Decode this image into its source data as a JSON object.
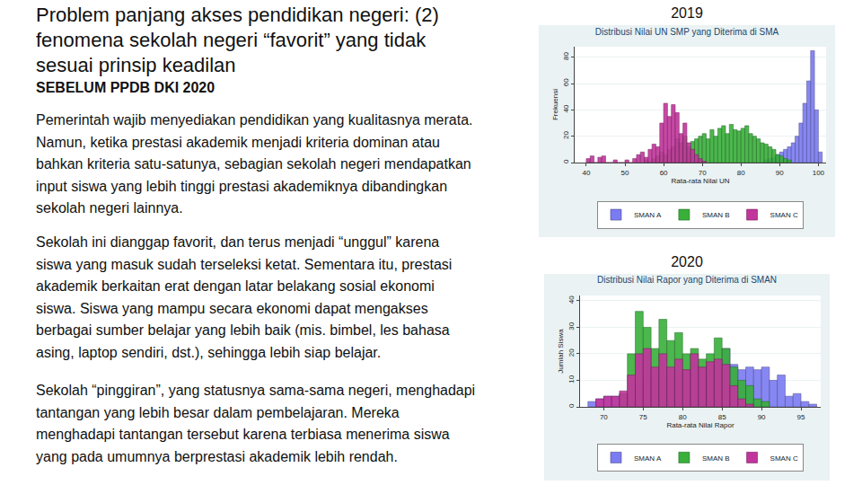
{
  "slide": {
    "title": [
      "Problem panjang akses pendidikan negeri: (2)",
      "fenomena sekolah negeri “favorit” yang tidak",
      "sesuai prinsip keadilan"
    ],
    "subtitle": "SEBELUM PPDB DKI 2020",
    "paragraphs": [
      [
        "Pemerintah wajib menyediakan pendidikan yang kualitasnya merata.",
        "Namun, ketika prestasi akademik menjadi kriteria dominan atau",
        "bahkan kriteria satu-satunya, sebagian sekolah negeri mendapatkan",
        "input siswa yang lebih tinggi prestasi akademiknya dibandingkan",
        "sekolah negeri lainnya."
      ],
      [
        "Sekolah ini dianggap favorit, dan terus menjadi “unggul” karena",
        "siswa yang masuk sudah terseleksi ketat. Sementara itu, prestasi",
        "akademik berkaitan erat dengan latar belakang sosial ekonomi",
        "siswa. Siswa yang mampu secara ekonomi dapat mengakses",
        "berbagai sumber belajar yang lebih baik (mis. bimbel, les bahasa",
        "asing, laptop sendiri, dst.), sehingga lebih siap belajar."
      ],
      [
        "Sekolah “pinggiran”, yang statusnya sama-sama negeri, menghadapi",
        "tantangan yang lebih besar dalam pembelajaran. Mereka",
        "menghadapi tantangan tersebut karena terbiasa menerima siswa",
        "yang pada umumnya berprestasi akademik lebih rendah."
      ]
    ]
  },
  "chart_data": [
    {
      "type": "histogram",
      "heading": "2019",
      "title": "Distribusi Nilai UN SMP yang Diterima di SMA",
      "x_label": "Rata-rata Nilai UN",
      "y_label": "Frekuensi",
      "xlim": [
        37,
        102
      ],
      "xticks": [
        40,
        50,
        60,
        70,
        80,
        90,
        100
      ],
      "ylim": [
        0,
        88
      ],
      "yticks": [
        0,
        20,
        40,
        60,
        80
      ],
      "grid": true,
      "legend": "bottom",
      "series": [
        {
          "name": "SMAN A",
          "color": "#7b7bf2",
          "bins": [
            86,
            87,
            88,
            89,
            90,
            91,
            92,
            93,
            94,
            95,
            96,
            97,
            98,
            99,
            100,
            101
          ],
          "values": [
            2,
            3,
            4,
            6,
            8,
            10,
            12,
            15,
            20,
            30,
            45,
            62,
            85,
            40,
            8
          ]
        },
        {
          "name": "SMAN B",
          "color": "#38b03a",
          "bins": [
            55,
            56,
            57,
            58,
            59,
            60,
            61,
            62,
            63,
            64,
            65,
            66,
            67,
            68,
            69,
            70,
            71,
            72,
            73,
            74,
            75,
            76,
            77,
            78,
            79,
            80,
            81,
            82,
            83,
            84,
            85,
            86,
            87,
            88,
            89,
            90,
            91,
            92,
            93
          ],
          "values": [
            2,
            0,
            3,
            5,
            8,
            6,
            10,
            12,
            18,
            15,
            20,
            12,
            16,
            18,
            20,
            22,
            18,
            25,
            20,
            26,
            28,
            22,
            29,
            25,
            24,
            26,
            28,
            22,
            20,
            18,
            15,
            14,
            12,
            10,
            6,
            5,
            3,
            2
          ]
        },
        {
          "name": "SMAN C",
          "color": "#c2359c",
          "bins": [
            40,
            41,
            42,
            43,
            44,
            45,
            46,
            47,
            48,
            49,
            50,
            51,
            52,
            53,
            54,
            55,
            56,
            57,
            58,
            59,
            60,
            61,
            62,
            63,
            64,
            65,
            66,
            67,
            68,
            69,
            70,
            71
          ],
          "values": [
            3,
            5,
            0,
            4,
            5,
            0,
            0,
            2,
            0,
            0,
            2,
            0,
            3,
            6,
            8,
            4,
            10,
            14,
            12,
            30,
            45,
            35,
            44,
            38,
            22,
            30,
            15,
            10,
            6,
            3,
            1
          ]
        }
      ]
    },
    {
      "type": "histogram",
      "heading": "2020",
      "title": "Distribusi Nilai Rapor yang Diterima di SMAN",
      "x_label": "Rata-rata Nilai Rapor",
      "y_label": "Jumlah Siswa",
      "xlim": [
        67,
        97.5
      ],
      "xticks": [
        70,
        75,
        80,
        85,
        90,
        95
      ],
      "ylim": [
        0,
        42
      ],
      "yticks": [
        0,
        10,
        20,
        30,
        40
      ],
      "grid": true,
      "legend": "bottom",
      "series": [
        {
          "name": "SMAN A",
          "color": "#7b7bf2",
          "bins": [
            68,
            69,
            70,
            71,
            72,
            73,
            74,
            75,
            76,
            77,
            78,
            79,
            80,
            81,
            82,
            83,
            84,
            85,
            86,
            87,
            88,
            89,
            90,
            91,
            92,
            93,
            94,
            95,
            96,
            97
          ],
          "values": [
            2,
            3,
            4,
            4,
            5,
            5,
            8,
            10,
            12,
            12,
            14,
            12,
            14,
            16,
            15,
            16,
            17,
            22,
            16,
            14,
            15,
            14,
            15,
            10,
            12,
            4,
            5,
            2,
            1
          ]
        },
        {
          "name": "SMAN B",
          "color": "#38b03a",
          "bins": [
            72,
            73,
            74,
            75,
            76,
            77,
            78,
            79,
            80,
            81,
            82,
            83,
            84,
            85,
            86,
            87,
            88,
            89,
            90,
            91
          ],
          "values": [
            5,
            20,
            36,
            30,
            22,
            33,
            25,
            28,
            20,
            22,
            18,
            20,
            26,
            22,
            15,
            10,
            8,
            3,
            2
          ]
        },
        {
          "name": "SMAN C",
          "color": "#c2359c",
          "bins": [
            69,
            70,
            71,
            72,
            73,
            74,
            75,
            76,
            77,
            78,
            79,
            80,
            81,
            82,
            83,
            84,
            85,
            86,
            87,
            88,
            89
          ],
          "values": [
            3,
            4,
            4,
            6,
            12,
            20,
            22,
            15,
            20,
            15,
            18,
            14,
            20,
            15,
            17,
            18,
            16,
            8,
            3,
            1
          ]
        }
      ]
    }
  ]
}
